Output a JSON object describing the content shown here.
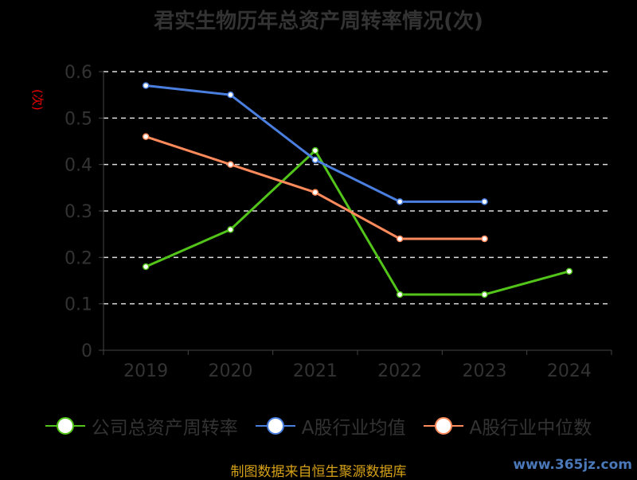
{
  "chart_data": {
    "type": "line",
    "title": "君实生物历年总资产周转率情况(次)",
    "ylabel": "(次)",
    "categories": [
      "2019",
      "2020",
      "2021",
      "2022",
      "2023",
      "2024"
    ],
    "ylim": [
      0,
      0.6
    ],
    "yticks": [
      "0",
      "0.1",
      "0.2",
      "0.3",
      "0.4",
      "0.5",
      "0.6"
    ],
    "grid": true,
    "legend_position": "bottom",
    "series": [
      {
        "name": "公司总资产周转率",
        "color": "#52c41a",
        "values": [
          0.18,
          0.26,
          0.43,
          0.12,
          0.12,
          0.17
        ]
      },
      {
        "name": "A股行业均值",
        "color": "#4a7fe0",
        "values": [
          0.57,
          0.55,
          0.41,
          0.32,
          0.32,
          null
        ]
      },
      {
        "name": "A股行业中位数",
        "color": "#ff8a5b",
        "values": [
          0.46,
          0.4,
          0.34,
          0.24,
          0.24,
          null
        ]
      }
    ]
  },
  "footer": {
    "source": "制图数据来自恒生聚源数据库",
    "watermark": "www.365jz.com"
  }
}
